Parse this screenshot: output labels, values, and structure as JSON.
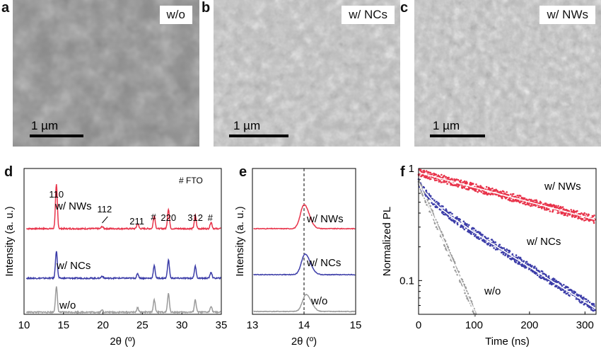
{
  "panels": {
    "a": {
      "letter": "a",
      "label": "w/o",
      "scale": "1 µm"
    },
    "b": {
      "letter": "b",
      "label": "w/ NCs",
      "scale": "1 µm"
    },
    "c": {
      "letter": "c",
      "label": "w/ NWs",
      "scale": "1 µm"
    },
    "d": {
      "letter": "d"
    },
    "e": {
      "letter": "e"
    },
    "f": {
      "letter": "f"
    }
  },
  "colors": {
    "nws": "#e8334a",
    "ncs": "#3c3da8",
    "wo": "#9a9a9a"
  },
  "chart_data": [
    {
      "type": "line",
      "panel": "d",
      "xlabel": "2θ (º)",
      "ylabel": "Intensity (a. u.)",
      "xlim": [
        10,
        35
      ],
      "xticks": [
        10,
        15,
        20,
        25,
        30,
        35
      ],
      "legend_note": "# FTO",
      "series": [
        {
          "name": "w/ NWs",
          "color_key": "nws",
          "offset": 2
        },
        {
          "name": "w/ NCs",
          "color_key": "ncs",
          "offset": 1
        },
        {
          "name": "w/o",
          "color_key": "wo",
          "offset": 0
        }
      ],
      "peaks": [
        {
          "x": 14.1,
          "h": [
            1.0,
            0.62,
            0.58
          ]
        },
        {
          "x": 19.9,
          "h": [
            0.05,
            0.05,
            0.05
          ]
        },
        {
          "x": 24.4,
          "h": [
            0.12,
            0.1,
            0.1
          ]
        },
        {
          "x": 26.5,
          "h": [
            0.3,
            0.28,
            0.28
          ]
        },
        {
          "x": 28.3,
          "h": [
            0.45,
            0.42,
            0.42
          ]
        },
        {
          "x": 31.7,
          "h": [
            0.3,
            0.27,
            0.28
          ]
        },
        {
          "x": 33.7,
          "h": [
            0.15,
            0.14,
            0.14
          ]
        }
      ],
      "annotations": [
        {
          "text": "110",
          "x": 14.1
        },
        {
          "text": "112",
          "x": 20.2
        },
        {
          "text": "211",
          "x": 24.3
        },
        {
          "text": "#",
          "x": 26.4
        },
        {
          "text": "220",
          "x": 28.3
        },
        {
          "text": "312",
          "x": 31.7
        },
        {
          "text": "#",
          "x": 33.6
        }
      ]
    },
    {
      "type": "line",
      "panel": "e",
      "xlabel": "2θ (º)",
      "ylabel": "Intensity (a. u.)",
      "xlim": [
        13,
        15
      ],
      "xticks": [
        13,
        14,
        15
      ],
      "reference_line_x": 14.0,
      "series": [
        {
          "name": "w/ NWs",
          "color_key": "nws",
          "peak_x": 14.0,
          "height": 1.0
        },
        {
          "name": "w/ NCs",
          "color_key": "ncs",
          "peak_x": 14.02,
          "height": 0.85
        },
        {
          "name": "w/o",
          "color_key": "wo",
          "peak_x": 14.04,
          "height": 0.7
        }
      ]
    },
    {
      "type": "scatter",
      "panel": "f",
      "xlabel": "Time (ns)",
      "ylabel": "Normalized PL",
      "xlim": [
        0,
        320
      ],
      "ylim": [
        0.05,
        1
      ],
      "yscale": "log",
      "xticks": [
        0,
        100,
        200,
        300
      ],
      "yticks": [
        {
          "value": 1,
          "label": "1"
        },
        {
          "value": 0.1,
          "label": "0.1"
        }
      ],
      "series": [
        {
          "name": "w/ NWs",
          "color_key": "nws",
          "tau_ns": 330,
          "start": 0.92
        },
        {
          "name": "w/ NCs",
          "color_key": "ncs",
          "tau_ns": 140,
          "start": 0.75,
          "fast_tau": 20,
          "fast_amp": 0.2
        },
        {
          "name": "w/o",
          "color_key": "wo",
          "tau_ns": 38,
          "start": 0.75
        }
      ]
    }
  ]
}
